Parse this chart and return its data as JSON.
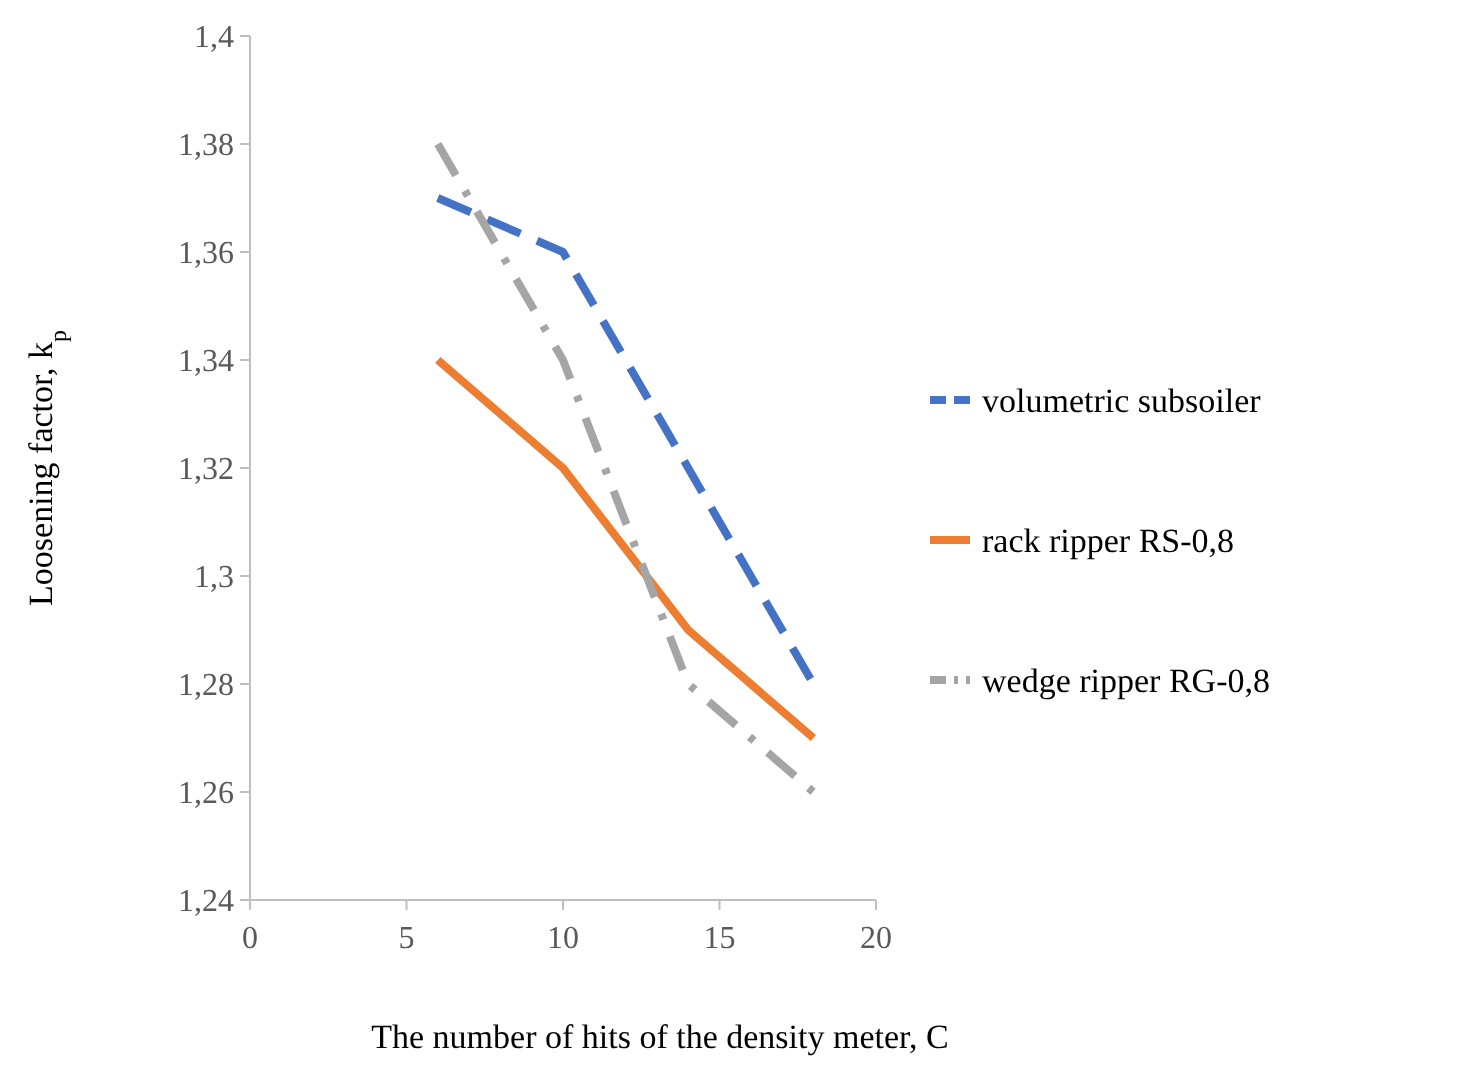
{
  "chart_data": {
    "type": "line",
    "xlabel": "The number of hits of the density meter, C",
    "ylabel": "Loosening factor, k$_{p}$",
    "xlim": [
      0,
      20
    ],
    "xticks": [
      0,
      5,
      10,
      15,
      20
    ],
    "ylim": [
      1.24,
      1.4
    ],
    "yticks": [
      {
        "value": 1.24,
        "label": "1,24"
      },
      {
        "value": 1.26,
        "label": "1,26"
      },
      {
        "value": 1.28,
        "label": "1,28"
      },
      {
        "value": 1.3,
        "label": "1,3"
      },
      {
        "value": 1.32,
        "label": "1,32"
      },
      {
        "value": 1.34,
        "label": "1,34"
      },
      {
        "value": 1.36,
        "label": "1,36"
      },
      {
        "value": 1.38,
        "label": "1,38"
      },
      {
        "value": 1.4,
        "label": "1,4"
      }
    ],
    "x": [
      6,
      10,
      14,
      18
    ],
    "grid": false,
    "legend": "right",
    "marker": "none",
    "series": [
      {
        "name": "volumetric subsoiler",
        "color": "#4472c4",
        "values": [
          1.37,
          1.36,
          1.32,
          1.28
        ],
        "line_style": "dashed"
      },
      {
        "name": "rack ripper RS-0,8",
        "color": "#ed7d31",
        "values": [
          1.34,
          1.32,
          1.29,
          1.27
        ],
        "line_style": "solid"
      },
      {
        "name": "wedge ripper RG-0,8",
        "color": "#a5a5a5",
        "values": [
          1.38,
          1.34,
          1.28,
          1.26
        ],
        "line_style": "dashdot"
      }
    ]
  }
}
